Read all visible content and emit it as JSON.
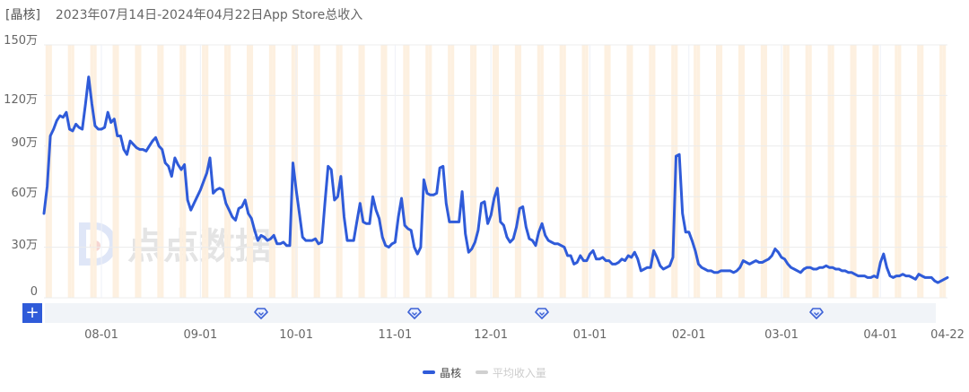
{
  "header": {
    "app_tag": "[晶核]",
    "title_text": "2023年07月14日-2024年04月22日App Store总收入"
  },
  "watermark": {
    "text": "点点数据"
  },
  "controls": {
    "add_button_label": "+"
  },
  "legend": [
    {
      "label": "晶核",
      "color": "#2f5bd9",
      "active": true
    },
    {
      "label": "平均收入量",
      "color": "#d0d0d0",
      "active": false
    }
  ],
  "colors": {
    "line": "#2f5bd9",
    "weekend_band": "#fdf0e0",
    "grid": "#ececec",
    "slider_bg": "#f1f4f8",
    "marker": "#3d62d6"
  },
  "chart_data": {
    "type": "line",
    "title": "2023年07月14日-2024年04月22日App Store总收入",
    "xlabel": "",
    "ylabel": "",
    "ylim": [
      0,
      1500000
    ],
    "y_ticks": [
      "0",
      "30万",
      "60万",
      "90万",
      "120万",
      "150万"
    ],
    "x_ticks": [
      "08-01",
      "09-01",
      "10-01",
      "11-01",
      "12-01",
      "01-01",
      "02-01",
      "03-01",
      "04-01",
      "04-22"
    ],
    "grid": true,
    "legend_position": "bottom",
    "start_date": "2023-07-14",
    "end_date": "2024-04-22",
    "markers_dates": [
      "2023-09-20",
      "2023-11-07",
      "2023-12-17",
      "2024-03-12"
    ],
    "series": [
      {
        "name": "晶核",
        "points": [
          [
            "07-14",
            500000
          ],
          [
            "07-15",
            660000
          ],
          [
            "07-16",
            960000
          ],
          [
            "07-17",
            1000000
          ],
          [
            "07-18",
            1050000
          ],
          [
            "07-19",
            1080000
          ],
          [
            "07-20",
            1070000
          ],
          [
            "07-21",
            1100000
          ],
          [
            "07-22",
            1000000
          ],
          [
            "07-23",
            990000
          ],
          [
            "07-24",
            1030000
          ],
          [
            "07-25",
            1010000
          ],
          [
            "07-26",
            1000000
          ],
          [
            "07-27",
            1150000
          ],
          [
            "07-28",
            1310000
          ],
          [
            "07-29",
            1150000
          ],
          [
            "07-30",
            1020000
          ],
          [
            "07-31",
            1000000
          ],
          [
            "08-01",
            1000000
          ],
          [
            "08-02",
            1010000
          ],
          [
            "08-03",
            1100000
          ],
          [
            "08-04",
            1040000
          ],
          [
            "08-05",
            1060000
          ],
          [
            "08-06",
            960000
          ],
          [
            "08-07",
            960000
          ],
          [
            "08-08",
            880000
          ],
          [
            "08-09",
            850000
          ],
          [
            "08-10",
            930000
          ],
          [
            "08-11",
            910000
          ],
          [
            "08-12",
            890000
          ],
          [
            "08-13",
            880000
          ],
          [
            "08-14",
            880000
          ],
          [
            "08-15",
            870000
          ],
          [
            "08-16",
            900000
          ],
          [
            "08-17",
            930000
          ],
          [
            "08-18",
            950000
          ],
          [
            "08-19",
            900000
          ],
          [
            "08-20",
            880000
          ],
          [
            "08-21",
            800000
          ],
          [
            "08-22",
            780000
          ],
          [
            "08-23",
            720000
          ],
          [
            "08-24",
            830000
          ],
          [
            "08-25",
            790000
          ],
          [
            "08-26",
            760000
          ],
          [
            "08-27",
            790000
          ],
          [
            "08-28",
            580000
          ],
          [
            "08-29",
            520000
          ],
          [
            "08-30",
            560000
          ],
          [
            "08-31",
            600000
          ],
          [
            "09-01",
            640000
          ],
          [
            "09-02",
            690000
          ],
          [
            "09-03",
            740000
          ],
          [
            "09-04",
            830000
          ],
          [
            "09-05",
            620000
          ],
          [
            "09-06",
            640000
          ],
          [
            "09-07",
            650000
          ],
          [
            "09-08",
            640000
          ],
          [
            "09-09",
            560000
          ],
          [
            "09-10",
            520000
          ],
          [
            "09-11",
            480000
          ],
          [
            "09-12",
            460000
          ],
          [
            "09-13",
            530000
          ],
          [
            "09-14",
            540000
          ],
          [
            "09-15",
            580000
          ],
          [
            "09-16",
            500000
          ],
          [
            "09-17",
            470000
          ],
          [
            "09-18",
            400000
          ],
          [
            "09-19",
            340000
          ],
          [
            "09-20",
            370000
          ],
          [
            "09-21",
            360000
          ],
          [
            "09-22",
            340000
          ],
          [
            "09-23",
            350000
          ],
          [
            "09-24",
            370000
          ],
          [
            "09-25",
            320000
          ],
          [
            "09-26",
            320000
          ],
          [
            "09-27",
            330000
          ],
          [
            "09-28",
            310000
          ],
          [
            "09-29",
            310000
          ],
          [
            "09-30",
            800000
          ],
          [
            "10-01",
            640000
          ],
          [
            "10-02",
            500000
          ],
          [
            "10-03",
            360000
          ],
          [
            "10-04",
            340000
          ],
          [
            "10-05",
            340000
          ],
          [
            "10-06",
            340000
          ],
          [
            "10-07",
            350000
          ],
          [
            "10-08",
            320000
          ],
          [
            "10-09",
            330000
          ],
          [
            "10-10",
            560000
          ],
          [
            "10-11",
            780000
          ],
          [
            "10-12",
            760000
          ],
          [
            "10-13",
            580000
          ],
          [
            "10-14",
            600000
          ],
          [
            "10-15",
            720000
          ],
          [
            "10-16",
            480000
          ],
          [
            "10-17",
            340000
          ],
          [
            "10-18",
            340000
          ],
          [
            "10-19",
            340000
          ],
          [
            "10-20",
            450000
          ],
          [
            "10-21",
            560000
          ],
          [
            "10-22",
            450000
          ],
          [
            "10-23",
            440000
          ],
          [
            "10-24",
            440000
          ],
          [
            "10-25",
            600000
          ],
          [
            "10-26",
            520000
          ],
          [
            "10-27",
            470000
          ],
          [
            "10-28",
            360000
          ],
          [
            "10-29",
            310000
          ],
          [
            "10-30",
            300000
          ],
          [
            "10-31",
            320000
          ],
          [
            "11-01",
            330000
          ],
          [
            "11-02",
            480000
          ],
          [
            "11-03",
            590000
          ],
          [
            "11-04",
            430000
          ],
          [
            "11-05",
            410000
          ],
          [
            "11-06",
            400000
          ],
          [
            "11-07",
            300000
          ],
          [
            "11-08",
            260000
          ],
          [
            "11-09",
            300000
          ],
          [
            "11-10",
            700000
          ],
          [
            "11-11",
            620000
          ],
          [
            "11-12",
            610000
          ],
          [
            "11-13",
            610000
          ],
          [
            "11-14",
            620000
          ],
          [
            "11-15",
            770000
          ],
          [
            "11-16",
            780000
          ],
          [
            "11-17",
            560000
          ],
          [
            "11-18",
            450000
          ],
          [
            "11-19",
            450000
          ],
          [
            "11-20",
            450000
          ],
          [
            "11-21",
            450000
          ],
          [
            "11-22",
            630000
          ],
          [
            "11-23",
            380000
          ],
          [
            "11-24",
            270000
          ],
          [
            "11-25",
            290000
          ],
          [
            "11-26",
            330000
          ],
          [
            "11-27",
            400000
          ],
          [
            "11-28",
            560000
          ],
          [
            "11-29",
            570000
          ],
          [
            "11-30",
            440000
          ],
          [
            "12-01",
            490000
          ],
          [
            "12-02",
            590000
          ],
          [
            "12-03",
            650000
          ],
          [
            "12-04",
            450000
          ],
          [
            "12-05",
            430000
          ],
          [
            "12-06",
            360000
          ],
          [
            "12-07",
            330000
          ],
          [
            "12-08",
            350000
          ],
          [
            "12-09",
            420000
          ],
          [
            "12-10",
            530000
          ],
          [
            "12-11",
            540000
          ],
          [
            "12-12",
            420000
          ],
          [
            "12-13",
            350000
          ],
          [
            "12-14",
            340000
          ],
          [
            "12-15",
            310000
          ],
          [
            "12-16",
            390000
          ],
          [
            "12-17",
            440000
          ],
          [
            "12-18",
            370000
          ],
          [
            "12-19",
            340000
          ],
          [
            "12-20",
            330000
          ],
          [
            "12-21",
            320000
          ],
          [
            "12-22",
            320000
          ],
          [
            "12-23",
            310000
          ],
          [
            "12-24",
            300000
          ],
          [
            "12-25",
            250000
          ],
          [
            "12-26",
            250000
          ],
          [
            "12-27",
            200000
          ],
          [
            "12-28",
            210000
          ],
          [
            "12-29",
            250000
          ],
          [
            "12-30",
            220000
          ],
          [
            "12-31",
            220000
          ],
          [
            "01-01",
            260000
          ],
          [
            "01-02",
            280000
          ],
          [
            "01-03",
            230000
          ],
          [
            "01-04",
            230000
          ],
          [
            "01-05",
            240000
          ],
          [
            "01-06",
            220000
          ],
          [
            "01-07",
            220000
          ],
          [
            "01-08",
            200000
          ],
          [
            "01-09",
            200000
          ],
          [
            "01-10",
            210000
          ],
          [
            "01-11",
            230000
          ],
          [
            "01-12",
            220000
          ],
          [
            "01-13",
            250000
          ],
          [
            "01-14",
            240000
          ],
          [
            "01-15",
            270000
          ],
          [
            "01-16",
            230000
          ],
          [
            "01-17",
            160000
          ],
          [
            "01-18",
            170000
          ],
          [
            "01-19",
            180000
          ],
          [
            "01-20",
            180000
          ],
          [
            "01-21",
            280000
          ],
          [
            "01-22",
            240000
          ],
          [
            "01-23",
            190000
          ],
          [
            "01-24",
            170000
          ],
          [
            "01-25",
            180000
          ],
          [
            "01-26",
            190000
          ],
          [
            "01-27",
            240000
          ],
          [
            "01-28",
            840000
          ],
          [
            "01-29",
            850000
          ],
          [
            "01-30",
            500000
          ],
          [
            "01-31",
            390000
          ],
          [
            "02-01",
            390000
          ],
          [
            "02-02",
            340000
          ],
          [
            "02-03",
            280000
          ],
          [
            "02-04",
            200000
          ],
          [
            "02-05",
            180000
          ],
          [
            "02-06",
            170000
          ],
          [
            "02-07",
            160000
          ],
          [
            "02-08",
            160000
          ],
          [
            "02-09",
            150000
          ],
          [
            "02-10",
            150000
          ],
          [
            "02-11",
            160000
          ],
          [
            "02-12",
            160000
          ],
          [
            "02-13",
            160000
          ],
          [
            "02-14",
            160000
          ],
          [
            "02-15",
            150000
          ],
          [
            "02-16",
            160000
          ],
          [
            "02-17",
            180000
          ],
          [
            "02-18",
            220000
          ],
          [
            "02-19",
            210000
          ],
          [
            "02-20",
            200000
          ],
          [
            "02-21",
            210000
          ],
          [
            "02-22",
            220000
          ],
          [
            "02-23",
            210000
          ],
          [
            "02-24",
            210000
          ],
          [
            "02-25",
            220000
          ],
          [
            "02-26",
            230000
          ],
          [
            "02-27",
            250000
          ],
          [
            "02-28",
            290000
          ],
          [
            "02-29",
            270000
          ],
          [
            "03-01",
            240000
          ],
          [
            "03-02",
            230000
          ],
          [
            "03-03",
            200000
          ],
          [
            "03-04",
            180000
          ],
          [
            "03-05",
            170000
          ],
          [
            "03-06",
            160000
          ],
          [
            "03-07",
            150000
          ],
          [
            "03-08",
            170000
          ],
          [
            "03-09",
            180000
          ],
          [
            "03-10",
            180000
          ],
          [
            "03-11",
            170000
          ],
          [
            "03-12",
            170000
          ],
          [
            "03-13",
            180000
          ],
          [
            "03-14",
            180000
          ],
          [
            "03-15",
            190000
          ],
          [
            "03-16",
            180000
          ],
          [
            "03-17",
            180000
          ],
          [
            "03-18",
            170000
          ],
          [
            "03-19",
            170000
          ],
          [
            "03-20",
            160000
          ],
          [
            "03-21",
            160000
          ],
          [
            "03-22",
            150000
          ],
          [
            "03-23",
            150000
          ],
          [
            "03-24",
            140000
          ],
          [
            "03-25",
            130000
          ],
          [
            "03-26",
            130000
          ],
          [
            "03-27",
            130000
          ],
          [
            "03-28",
            120000
          ],
          [
            "03-29",
            120000
          ],
          [
            "03-30",
            130000
          ],
          [
            "03-31",
            120000
          ],
          [
            "04-01",
            210000
          ],
          [
            "04-02",
            260000
          ],
          [
            "04-03",
            180000
          ],
          [
            "04-04",
            130000
          ],
          [
            "04-05",
            120000
          ],
          [
            "04-06",
            130000
          ],
          [
            "04-07",
            130000
          ],
          [
            "04-08",
            140000
          ],
          [
            "04-09",
            130000
          ],
          [
            "04-10",
            130000
          ],
          [
            "04-11",
            120000
          ],
          [
            "04-12",
            110000
          ],
          [
            "04-13",
            140000
          ],
          [
            "04-14",
            130000
          ],
          [
            "04-15",
            120000
          ],
          [
            "04-16",
            120000
          ],
          [
            "04-17",
            120000
          ],
          [
            "04-18",
            100000
          ],
          [
            "04-19",
            90000
          ],
          [
            "04-20",
            100000
          ],
          [
            "04-21",
            110000
          ],
          [
            "04-22",
            120000
          ]
        ]
      }
    ]
  }
}
